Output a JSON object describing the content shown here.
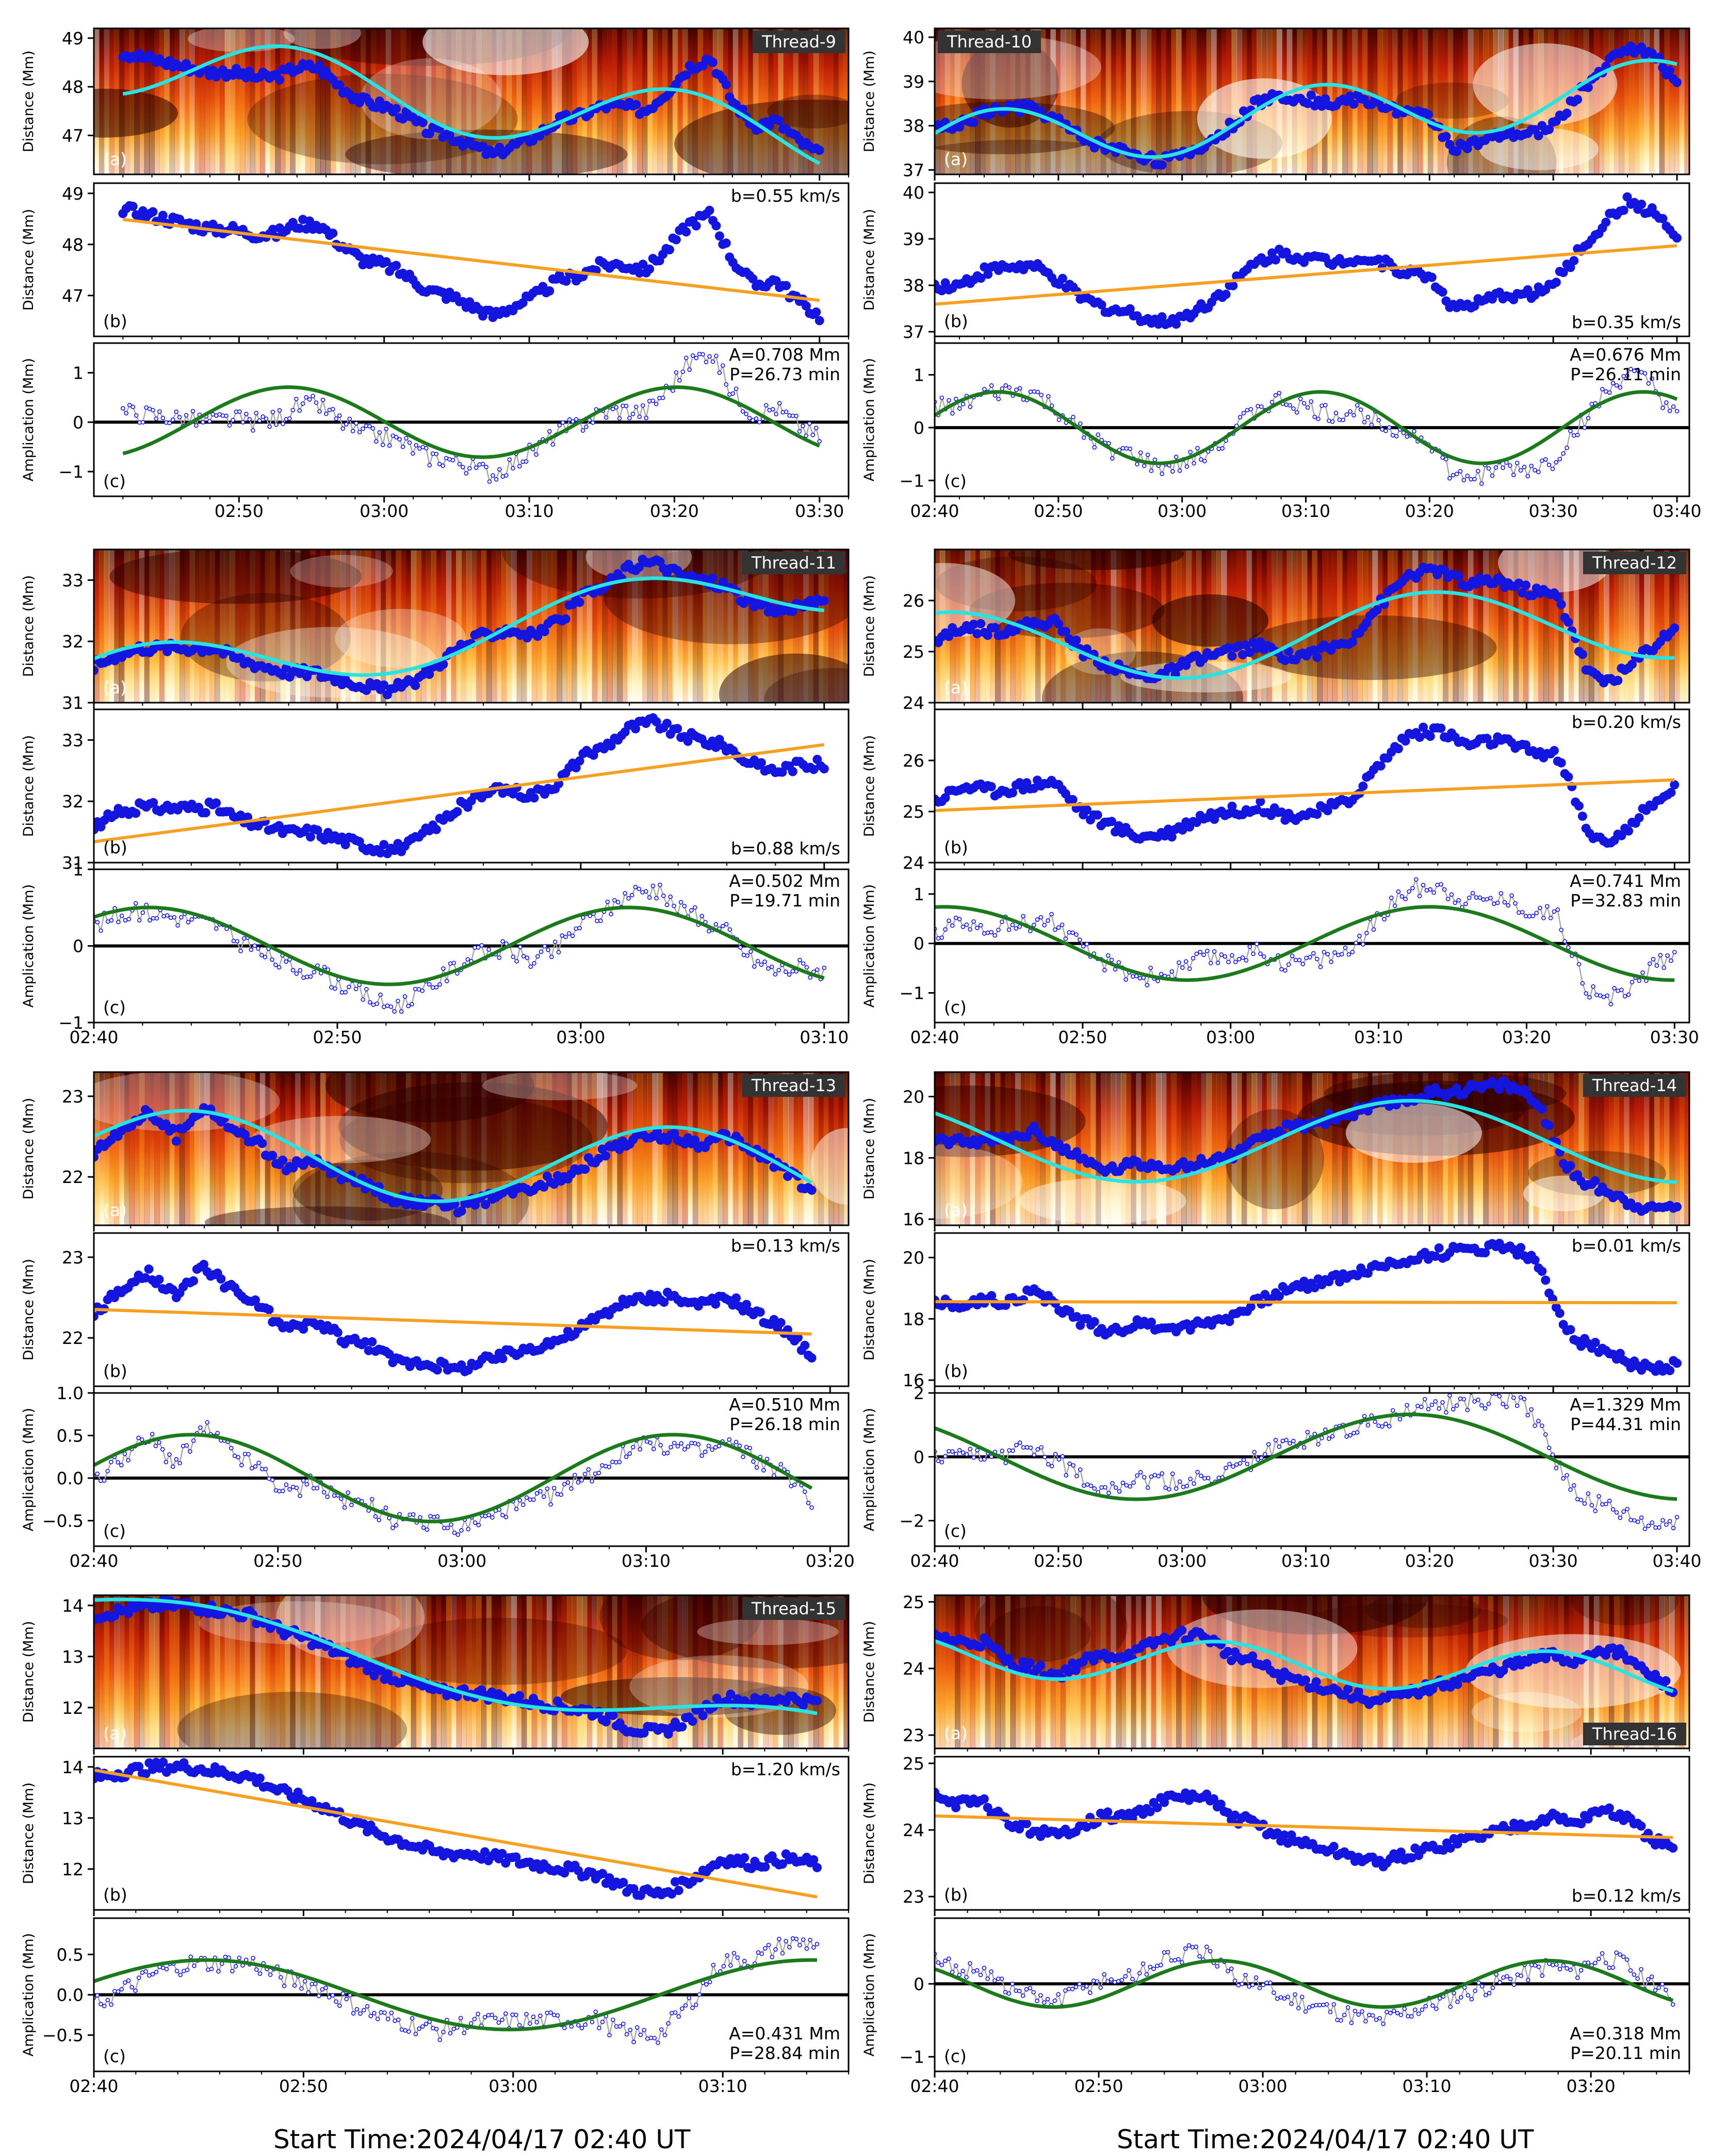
{
  "figure": {
    "footer_left": "Start Time:2024/04/17 02:40 UT",
    "footer_right": "Start Time:2024/04/17 02:40 UT"
  },
  "colors": {
    "dots": "#1515e0",
    "fit_wave": "#29e3e3",
    "trend_line": "#f5a020",
    "sine_fit": "#1c7a1c",
    "residual_line": "#a8a8a8",
    "zero_line": "#000000"
  },
  "chart_data": [
    {
      "type": "scatter",
      "id": "thread-9",
      "title": "Thread-9",
      "x_range_min": [
        0,
        52
      ],
      "x_ticks": [
        "02:50",
        "03:00",
        "03:10",
        "03:20",
        "03:30"
      ],
      "x_tick_min": [
        10,
        20,
        30,
        40,
        50
      ],
      "panel_a": {
        "label": "(a)",
        "ylabel": "Distance (Mm)",
        "ylim": [
          46.2,
          49.2
        ],
        "yticks": [
          47,
          48,
          49
        ]
      },
      "panel_b": {
        "label": "(b)",
        "ylabel": "Distance (Mm)",
        "ylim": [
          46.2,
          49.2
        ],
        "yticks": [
          47,
          48,
          49
        ],
        "velocity_label": "b=0.55 km/s"
      },
      "panel_c": {
        "label": "(c)",
        "ylabel": "Amplication (Mm)",
        "ylim": [
          -1.5,
          1.6
        ],
        "yticks": [
          -1,
          0,
          1
        ],
        "amp_label": "A=0.708 Mm",
        "period_label": "P=26.73 min"
      },
      "fit": {
        "amplitude_mm": 0.708,
        "period_min": 26.73,
        "velocity_km_s": 0.55
      },
      "series": {
        "t": [
          2,
          3.5,
          5,
          6.5,
          8,
          9.5,
          11,
          12.5,
          14,
          15.5,
          17,
          18.5,
          20,
          21.5,
          23,
          24.5,
          26,
          27.5,
          29,
          30.5,
          32,
          33.5,
          35,
          36.5,
          38,
          39.5,
          41,
          42.5,
          44,
          45.5,
          47,
          48.5,
          50
        ],
        "distance": [
          48.7,
          48.6,
          48.5,
          48.4,
          48.3,
          48.3,
          48.2,
          48.2,
          48.4,
          48.4,
          48.0,
          47.7,
          47.6,
          47.4,
          47.1,
          47.0,
          46.8,
          46.6,
          46.8,
          47.0,
          47.3,
          47.4,
          47.6,
          47.6,
          47.5,
          47.9,
          48.4,
          48.6,
          47.7,
          47.2,
          47.3,
          46.9,
          46.6
        ]
      }
    },
    {
      "type": "scatter",
      "id": "thread-10",
      "title": "Thread-10",
      "x_range_min": [
        0,
        61
      ],
      "x_ticks": [
        "02:40",
        "02:50",
        "03:00",
        "03:10",
        "03:20",
        "03:30",
        "03:40"
      ],
      "x_tick_min": [
        0,
        10,
        20,
        30,
        40,
        50,
        60
      ],
      "panel_a": {
        "label": "(a)",
        "ylabel": "Distance (Mm)",
        "ylim": [
          36.9,
          40.2
        ],
        "yticks": [
          37,
          38,
          39,
          40
        ]
      },
      "panel_b": {
        "label": "(b)",
        "ylabel": "Distance (Mm)",
        "ylim": [
          36.9,
          40.2
        ],
        "yticks": [
          37,
          38,
          39,
          40
        ],
        "velocity_label": "b=0.35 km/s"
      },
      "panel_c": {
        "label": "(c)",
        "ylabel": "Amplication (Mm)",
        "ylim": [
          -1.3,
          1.6
        ],
        "yticks": [
          -1,
          0,
          1
        ],
        "amp_label": "A=0.676 Mm",
        "period_label": "P=26.11 min"
      },
      "fit": {
        "amplitude_mm": 0.676,
        "period_min": 26.11,
        "velocity_km_s": 0.35
      },
      "series": {
        "t": [
          0,
          2,
          4,
          6,
          8,
          10,
          12,
          14,
          16,
          18,
          20,
          22,
          24,
          26,
          28,
          30,
          32,
          34,
          36,
          38,
          40,
          42,
          44,
          46,
          48,
          50,
          52,
          54,
          56,
          58,
          60
        ],
        "distance": [
          38.0,
          38.0,
          38.3,
          38.4,
          38.4,
          38.1,
          37.7,
          37.5,
          37.4,
          37.2,
          37.3,
          37.6,
          38.0,
          38.5,
          38.7,
          38.6,
          38.5,
          38.6,
          38.5,
          38.3,
          38.2,
          37.5,
          37.6,
          37.8,
          37.8,
          38.0,
          38.7,
          39.3,
          39.8,
          39.6,
          39.0
        ]
      }
    },
    {
      "type": "scatter",
      "id": "thread-11",
      "title": "Thread-11",
      "x_range_min": [
        0,
        31
      ],
      "x_ticks": [
        "02:40",
        "02:50",
        "03:00",
        "03:10"
      ],
      "x_tick_min": [
        0,
        10,
        20,
        30
      ],
      "panel_a": {
        "label": "(a)",
        "ylabel": "Distance (Mm)",
        "ylim": [
          31.0,
          33.5
        ],
        "yticks": [
          31,
          32,
          33
        ]
      },
      "panel_b": {
        "label": "(b)",
        "ylabel": "Distance (Mm)",
        "ylim": [
          31.0,
          33.5
        ],
        "yticks": [
          31,
          32,
          33
        ],
        "velocity_label": "b=0.88 km/s"
      },
      "panel_c": {
        "label": "(c)",
        "ylabel": "Amplication (Mm)",
        "ylim": [
          -1.0,
          1.0
        ],
        "yticks": [
          -1,
          0,
          1
        ],
        "amp_label": "A=0.502 Mm",
        "period_label": "P=19.71 min"
      },
      "fit": {
        "amplitude_mm": 0.502,
        "period_min": 19.71,
        "velocity_km_s": 0.88
      },
      "series": {
        "t": [
          0,
          1,
          2,
          3,
          4,
          5,
          6,
          7,
          8,
          9,
          10,
          11,
          12,
          13,
          14,
          15,
          16,
          17,
          18,
          19,
          20,
          21,
          22,
          23,
          24,
          25,
          26,
          27,
          28,
          29,
          30
        ],
        "distance": [
          31.6,
          31.8,
          31.9,
          31.9,
          31.9,
          31.9,
          31.7,
          31.6,
          31.5,
          31.5,
          31.4,
          31.3,
          31.2,
          31.3,
          31.6,
          31.9,
          32.1,
          32.2,
          32.1,
          32.3,
          32.7,
          32.9,
          33.2,
          33.3,
          33.1,
          33.0,
          32.9,
          32.6,
          32.5,
          32.6,
          32.6
        ]
      }
    },
    {
      "type": "scatter",
      "id": "thread-12",
      "title": "Thread-12",
      "x_range_min": [
        0,
        51
      ],
      "x_ticks": [
        "02:40",
        "02:50",
        "03:00",
        "03:10",
        "03:20",
        "03:30"
      ],
      "x_tick_min": [
        0,
        10,
        20,
        30,
        40,
        50
      ],
      "panel_a": {
        "label": "(a)",
        "ylabel": "Distance (Mm)",
        "ylim": [
          24.0,
          27.0
        ],
        "yticks": [
          24,
          25,
          26
        ]
      },
      "panel_b": {
        "label": "(b)",
        "ylabel": "Distance (Mm)",
        "ylim": [
          24.0,
          27.0
        ],
        "yticks": [
          24,
          25,
          26
        ],
        "velocity_label": "b=0.20 km/s"
      },
      "panel_c": {
        "label": "(c)",
        "ylabel": "Amplication (Mm)",
        "ylim": [
          -1.6,
          1.5
        ],
        "yticks": [
          -1,
          0,
          1
        ],
        "amp_label": "A=0.741 Mm",
        "period_label": "P=32.83 min"
      },
      "fit": {
        "amplitude_mm": 0.741,
        "period_min": 32.83,
        "velocity_km_s": 0.2
      },
      "series": {
        "t": [
          0,
          2,
          4,
          6,
          8,
          10,
          12,
          14,
          16,
          18,
          20,
          22,
          24,
          26,
          28,
          30,
          32,
          34,
          36,
          38,
          40,
          42,
          43,
          44,
          45,
          46,
          47,
          48,
          49,
          50
        ],
        "distance": [
          25.2,
          25.5,
          25.4,
          25.5,
          25.6,
          25.0,
          24.7,
          24.5,
          24.6,
          24.9,
          25.0,
          25.1,
          24.9,
          25.0,
          25.2,
          25.9,
          26.5,
          26.6,
          26.3,
          26.4,
          26.2,
          26.1,
          25.5,
          24.7,
          24.4,
          24.5,
          24.7,
          25.0,
          25.2,
          25.5
        ]
      }
    },
    {
      "type": "scatter",
      "id": "thread-13",
      "title": "Thread-13",
      "x_range_min": [
        0,
        41
      ],
      "x_ticks": [
        "02:40",
        "02:50",
        "03:00",
        "03:10",
        "03:20"
      ],
      "x_tick_min": [
        0,
        10,
        20,
        30,
        40
      ],
      "panel_a": {
        "label": "(a)",
        "ylabel": "Distance (Mm)",
        "ylim": [
          21.4,
          23.3
        ],
        "yticks": [
          22,
          23
        ]
      },
      "panel_b": {
        "label": "(b)",
        "ylabel": "Distance (Mm)",
        "ylim": [
          21.4,
          23.3
        ],
        "yticks": [
          22,
          23
        ],
        "velocity_label": "b=0.13 km/s"
      },
      "panel_c": {
        "label": "(c)",
        "ylabel": "Amplication (Mm)",
        "ylim": [
          -0.8,
          1.0
        ],
        "yticks": [
          -0.5,
          0.0,
          0.5,
          1.0
        ],
        "ytick_labels": [
          "−0.5",
          "0.0",
          "0.5",
          "1.0"
        ],
        "amp_label": "A=0.510 Mm",
        "period_label": "P=26.18 min"
      },
      "fit": {
        "amplitude_mm": 0.51,
        "period_min": 26.18,
        "velocity_km_s": 0.13
      },
      "series": {
        "t": [
          0,
          1.5,
          3,
          4.5,
          6,
          7.5,
          9,
          10.5,
          12,
          13.5,
          15,
          16.5,
          18,
          19.5,
          21,
          22.5,
          24,
          25.5,
          27,
          28.5,
          30,
          31.5,
          33,
          34.5,
          36,
          37.5,
          39
        ],
        "distance": [
          22.3,
          22.6,
          22.8,
          22.5,
          22.9,
          22.6,
          22.4,
          22.1,
          22.2,
          22.0,
          21.9,
          21.7,
          21.7,
          21.6,
          21.7,
          21.8,
          21.9,
          22.0,
          22.2,
          22.4,
          22.5,
          22.5,
          22.4,
          22.5,
          22.3,
          22.1,
          21.8
        ]
      }
    },
    {
      "type": "scatter",
      "id": "thread-14",
      "title": "Thread-14",
      "x_range_min": [
        0,
        61
      ],
      "x_ticks": [
        "02:40",
        "02:50",
        "03:00",
        "03:10",
        "03:20",
        "03:30",
        "03:40"
      ],
      "x_tick_min": [
        0,
        10,
        20,
        30,
        40,
        50,
        60
      ],
      "panel_a": {
        "label": "(a)",
        "ylabel": "Distance (Mm)",
        "ylim": [
          15.8,
          20.8
        ],
        "yticks": [
          16,
          18,
          20
        ]
      },
      "panel_b": {
        "label": "(b)",
        "ylabel": "Distance (Mm)",
        "ylim": [
          15.8,
          20.8
        ],
        "yticks": [
          16,
          18,
          20
        ],
        "velocity_label": "b=0.01 km/s"
      },
      "panel_c": {
        "label": "(c)",
        "ylabel": "Amplication (Mm)",
        "ylim": [
          -2.8,
          2.0
        ],
        "yticks": [
          -2,
          0,
          2
        ],
        "amp_label": "A=1.329 Mm",
        "period_label": "P=44.31 min"
      },
      "fit": {
        "amplitude_mm": 1.329,
        "period_min": 44.31,
        "velocity_km_s": 0.01
      },
      "series": {
        "t": [
          0,
          2,
          4,
          6,
          8,
          10,
          12,
          14,
          16,
          18,
          20,
          22,
          24,
          26,
          28,
          30,
          32,
          34,
          36,
          38,
          40,
          42,
          44,
          46,
          48,
          49,
          50,
          51,
          52,
          54,
          56,
          58,
          60
        ],
        "distance": [
          18.5,
          18.5,
          18.6,
          18.6,
          18.9,
          18.4,
          17.9,
          17.6,
          17.8,
          17.8,
          17.7,
          17.9,
          18.1,
          18.5,
          18.9,
          19.1,
          19.3,
          19.5,
          19.7,
          19.9,
          20.1,
          20.2,
          20.3,
          20.4,
          20.1,
          19.5,
          18.6,
          17.8,
          17.3,
          17.0,
          16.6,
          16.3,
          16.5
        ]
      }
    },
    {
      "type": "scatter",
      "id": "thread-15",
      "title": "Thread-15",
      "x_range_min": [
        0,
        36
      ],
      "x_ticks": [
        "02:40",
        "02:50",
        "03:00",
        "03:10"
      ],
      "x_tick_min": [
        0,
        10,
        20,
        30
      ],
      "panel_a": {
        "label": "(a)",
        "ylabel": "Distance (Mm)",
        "ylim": [
          11.2,
          14.2
        ],
        "yticks": [
          12,
          13,
          14
        ]
      },
      "panel_b": {
        "label": "(b)",
        "ylabel": "Distance (Mm)",
        "ylim": [
          11.2,
          14.2
        ],
        "yticks": [
          12,
          13,
          14
        ],
        "velocity_label": "b=1.20 km/s"
      },
      "panel_c": {
        "label": "(c)",
        "ylabel": "Amplication (Mm)",
        "ylim": [
          -0.95,
          0.95
        ],
        "yticks": [
          -0.5,
          0.0,
          0.5
        ],
        "ytick_labels": [
          "−0.5",
          "0.0",
          "0.5"
        ],
        "amp_label": "A=0.431 Mm",
        "period_label": "P=28.84 min"
      },
      "fit": {
        "amplitude_mm": 0.431,
        "period_min": 28.84,
        "velocity_km_s": 1.2
      },
      "series": {
        "t": [
          0,
          1.5,
          3,
          4.5,
          6,
          7.5,
          9,
          10.5,
          12,
          13.5,
          15,
          16.5,
          18,
          19.5,
          21,
          22.5,
          24,
          25.5,
          27,
          28.5,
          30,
          31.5,
          33,
          34.5
        ],
        "distance": [
          13.8,
          13.9,
          14.0,
          14.0,
          13.9,
          13.8,
          13.5,
          13.3,
          13.0,
          12.7,
          12.5,
          12.3,
          12.3,
          12.2,
          12.1,
          12.0,
          11.9,
          11.6,
          11.5,
          11.8,
          12.2,
          12.1,
          12.2,
          12.1
        ]
      }
    },
    {
      "type": "scatter",
      "id": "thread-16",
      "title": "Thread-16",
      "x_range_min": [
        0,
        46
      ],
      "x_ticks": [
        "02:40",
        "02:50",
        "03:00",
        "03:10",
        "03:20"
      ],
      "x_tick_min": [
        0,
        10,
        20,
        30,
        40
      ],
      "panel_a": {
        "label": "(a)",
        "ylabel": "Distance (Mm)",
        "ylim": [
          22.8,
          25.1
        ],
        "yticks": [
          23,
          24,
          25
        ]
      },
      "panel_b": {
        "label": "(b)",
        "ylabel": "Distance (Mm)",
        "ylim": [
          22.8,
          25.1
        ],
        "yticks": [
          23,
          24,
          25
        ],
        "velocity_label": "b=0.12 km/s"
      },
      "panel_c": {
        "label": "(c)",
        "ylabel": "Amplication (Mm)",
        "ylim": [
          -1.2,
          0.9
        ],
        "yticks": [
          -1,
          0
        ],
        "amp_label": "A=0.318 Mm",
        "period_label": "P=20.11 min"
      },
      "fit": {
        "amplitude_mm": 0.318,
        "period_min": 20.11,
        "velocity_km_s": 0.12
      },
      "series": {
        "t": [
          0,
          1.5,
          3,
          4.5,
          6,
          7.5,
          9,
          10.5,
          12,
          13.5,
          15,
          16.5,
          18,
          19.5,
          21,
          22.5,
          24,
          25.5,
          27,
          28.5,
          30,
          31.5,
          33,
          34.5,
          36,
          37.5,
          39,
          40.5,
          42,
          43.5,
          45
        ],
        "distance": [
          24.5,
          24.4,
          24.4,
          24.1,
          24.0,
          23.9,
          24.1,
          24.2,
          24.2,
          24.4,
          24.5,
          24.5,
          24.2,
          24.1,
          23.9,
          23.8,
          23.7,
          23.6,
          23.5,
          23.6,
          23.7,
          23.8,
          23.9,
          24.0,
          24.1,
          24.2,
          24.1,
          24.3,
          24.2,
          23.9,
          23.7
        ]
      }
    }
  ]
}
